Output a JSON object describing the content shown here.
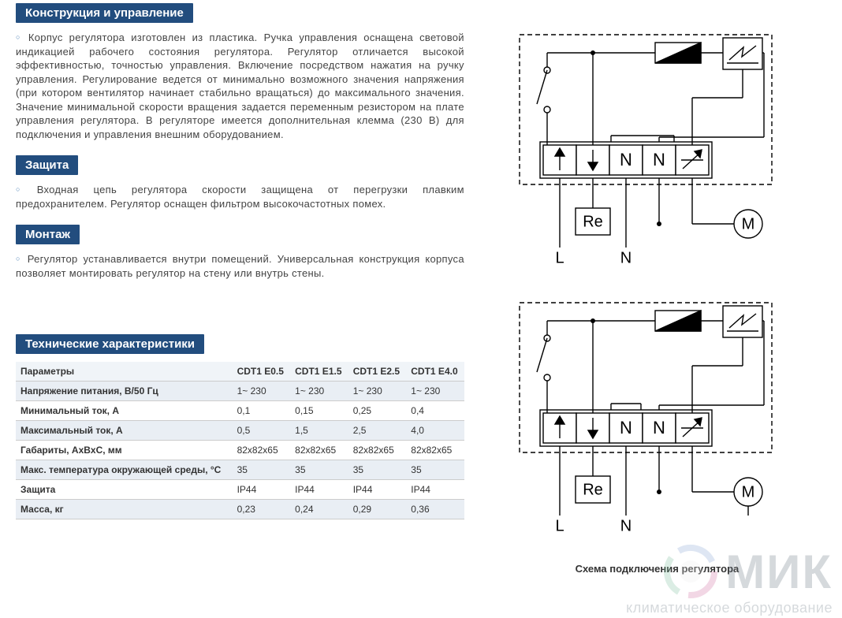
{
  "sections": {
    "construction": {
      "title": "Конструкция и управление",
      "text": "Корпус регулятора изготовлен из пластика. Ручка управления оснащена световой индикацией рабочего состояния регулятора. Регулятор отличается высокой эффективностью, точностью управления. Включение посредством нажатия на ручку управления. Регулирование ведется от минимально возможного значения напряжения (при котором вентилятор начинает стабильно вращаться) до максимального значения. Значение минимальной скорости вращения задается переменным резистором на плате управления регулятора. В регуляторе имеется дополнительная клемма (230 В) для подключения и управления внешним оборудованием."
    },
    "protection": {
      "title": "Защита",
      "text": "Входная цепь регулятора скорости защищена от перегрузки плавким предохранителем. Регулятор оснащен фильтром высокочастотных помех."
    },
    "mounting": {
      "title": "Монтаж",
      "text": "Регулятор устанавливается внутри помещений. Универсальная конструкция корпуса позволяет монтировать регулятор на стену или внутрь стены."
    },
    "specs": {
      "title": "Технические характеристики"
    }
  },
  "table": {
    "header_color": "#224d7e",
    "row_alt_bg": "#e9eef4",
    "columns": [
      "Параметры",
      "CDT1 E0.5",
      "CDT1 E1.5",
      "CDT1 E2.5",
      "CDT1 E4.0"
    ],
    "rows": [
      {
        "label": "Напряжение питания, В/50 Гц",
        "vals": [
          "1~ 230",
          "1~ 230",
          "1~ 230",
          "1~ 230"
        ]
      },
      {
        "label": "Минимальный ток, А",
        "vals": [
          "0,1",
          "0,15",
          "0,25",
          "0,4"
        ]
      },
      {
        "label": "Максимальный ток, А",
        "vals": [
          "0,5",
          "1,5",
          "2,5",
          "4,0"
        ]
      },
      {
        "label": "Габариты, AxBxC, мм",
        "vals": [
          "82x82x65",
          "82x82x65",
          "82x82x65",
          "82x82x65"
        ]
      },
      {
        "label": "Макс. температура окружающей среды, °C",
        "vals": [
          "35",
          "35",
          "35",
          "35"
        ]
      },
      {
        "label": "Защита",
        "vals": [
          "IP44",
          "IP44",
          "IP44",
          "IP44"
        ]
      },
      {
        "label": "Масса, кг",
        "vals": [
          "0,23",
          "0,24",
          "0,29",
          "0,36"
        ]
      }
    ]
  },
  "diagram": {
    "caption": "Схема подключения регулятора",
    "terminals": [
      "↑",
      "↓",
      "N",
      "N"
    ],
    "re_label": "Re",
    "m_label": "M",
    "l_label": "L",
    "n_label": "N",
    "style": {
      "stroke": "#000000",
      "stroke_width": 1.4,
      "dash": "6,4",
      "term_box_w": 42,
      "term_box_h": 38,
      "font_size_term": 22,
      "font_size_label": 20,
      "bg": "#ffffff"
    }
  },
  "watermark": {
    "brand": "МИК",
    "sub": "климатическое оборудование",
    "swirl_colors": [
      "#d374a3",
      "#7fbf9f",
      "#8aa7d6"
    ]
  },
  "colors": {
    "header_bg": "#224d7e",
    "header_fg": "#ffffff",
    "text": "#444444",
    "bullet": "#4a7fb5",
    "table_border": "#cccccc"
  }
}
